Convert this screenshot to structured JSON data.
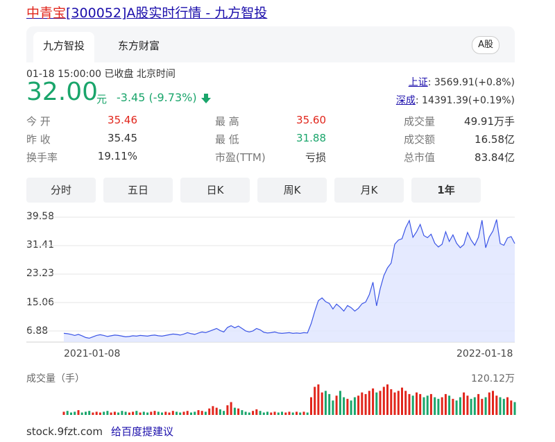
{
  "title": {
    "name": "中青宝",
    "rest": "[300052]A股实时行情 - 九方智投"
  },
  "tabs": {
    "active": "九方智投",
    "other": "东方财富",
    "market": "A股"
  },
  "meta": {
    "time": "01-18 15:00:00",
    "status": "已收盘",
    "tz": "北京时间"
  },
  "quote": {
    "price": "32.00",
    "unit": "元",
    "change": "-3.45 (-9.73%)"
  },
  "indices": [
    {
      "name": "上证",
      "value": ": 3569.91(+0.8%)"
    },
    {
      "name": "深成",
      "value": ": 14391.39(+0.19%)"
    }
  ],
  "stats": {
    "open_l": "今 开",
    "open": "35.46",
    "prev_l": "昨 收",
    "prev": "35.45",
    "turn_l": "换手率",
    "turn": "19.11%",
    "high_l": "最 高",
    "high": "35.60",
    "low_l": "最 低",
    "low": "31.88",
    "pe_l": "市盈(TTM)",
    "pe": "亏损",
    "vol_l": "成交量",
    "vol": "49.91万手",
    "amt_l": "成交额",
    "amt": "16.58亿",
    "cap_l": "总市值",
    "cap": "83.84亿"
  },
  "timeframes": [
    "分时",
    "五日",
    "日K",
    "周K",
    "月K",
    "1年"
  ],
  "colors": {
    "up": "#e1251b",
    "down": "#1aa56b",
    "line": "#3b55e6",
    "fill": "#dfe5ff"
  },
  "chart_data": {
    "type": "area",
    "y_ticks": [
      "39.58",
      "31.41",
      "23.23",
      "15.06",
      "6.88"
    ],
    "ylim": [
      6.88,
      39.58
    ],
    "x_start": "2021-01-08",
    "x_end": "2022-01-18",
    "values": [
      6.2,
      6.1,
      5.9,
      5.6,
      5.9,
      5.5,
      5.0,
      4.8,
      5.2,
      5.6,
      5.8,
      5.6,
      5.3,
      5.5,
      5.7,
      5.6,
      5.4,
      5.2,
      5.3,
      5.5,
      5.4,
      5.6,
      5.5,
      5.4,
      5.6,
      5.7,
      5.5,
      5.4,
      5.6,
      5.8,
      6.0,
      5.9,
      5.7,
      6.0,
      6.4,
      6.1,
      5.9,
      6.3,
      6.6,
      6.4,
      6.8,
      7.2,
      7.6,
      7.0,
      6.6,
      7.9,
      8.4,
      7.8,
      8.3,
      7.6,
      6.9,
      6.6,
      6.9,
      7.6,
      7.2,
      6.5,
      6.3,
      6.4,
      6.6,
      6.3,
      6.2,
      6.3,
      6.4,
      6.2,
      6.3,
      6.2,
      6.4,
      6.3,
      9.0,
      12.5,
      15.6,
      16.4,
      15.3,
      14.8,
      13.2,
      14.6,
      13.7,
      12.6,
      14.2,
      13.6,
      12.6,
      13.4,
      14.7,
      15.2,
      17.3,
      20.9,
      14.1,
      19.0,
      22.8,
      25.0,
      26.4,
      31.8,
      33.0,
      33.4,
      36.5,
      38.6,
      33.8,
      35.4,
      37.5,
      34.3,
      33.7,
      34.7,
      32.1,
      31.0,
      31.8,
      35.4,
      32.6,
      34.5,
      32.1,
      30.8,
      31.7,
      35.2,
      33.0,
      31.5,
      33.8,
      38.7,
      30.8,
      33.9,
      35.6,
      38.9,
      32.0,
      31.5,
      33.6,
      34.0,
      32.0
    ],
    "volume_max_label": "120.12万",
    "volume": [
      4,
      5,
      3,
      4,
      6,
      3,
      4,
      5,
      3,
      4,
      3,
      4,
      5,
      3,
      4,
      3,
      5,
      4,
      3,
      4,
      5,
      3,
      4,
      3,
      4,
      5,
      4,
      3,
      4,
      3,
      5,
      4,
      3,
      4,
      5,
      3,
      4,
      6,
      5,
      4,
      8,
      11,
      9,
      7,
      5,
      12,
      16,
      9,
      8,
      6,
      4,
      3,
      5,
      7,
      5,
      3,
      4,
      3,
      4,
      3,
      4,
      3,
      4,
      3,
      4,
      3,
      4,
      3,
      22,
      35,
      38,
      28,
      30,
      26,
      18,
      24,
      30,
      22,
      20,
      18,
      22,
      24,
      28,
      26,
      30,
      33,
      28,
      30,
      35,
      38,
      32,
      28,
      30,
      34,
      30,
      26,
      24,
      28,
      26,
      22,
      24,
      26,
      22,
      20,
      22,
      26,
      24,
      20,
      18,
      22,
      28,
      24,
      20,
      22,
      26,
      20,
      22,
      28,
      30,
      24,
      22,
      20,
      22,
      18,
      16
    ]
  }
}
